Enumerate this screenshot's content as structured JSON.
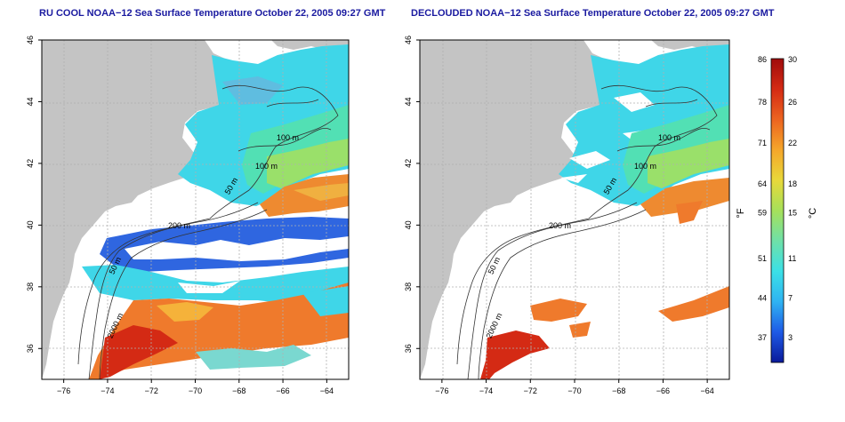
{
  "panels": [
    {
      "title": "RU COOL NOAA−12 Sea Surface Temperature October 22, 2005 09:27 GMT",
      "cloud_masked": false
    },
    {
      "title": "DECLOUDED NOAA−12 Sea Surface Temperature October 22, 2005 09:27 GMT",
      "cloud_masked": true
    }
  ],
  "axes": {
    "lon_range": [
      -77,
      -63
    ],
    "lat_range": [
      35,
      46
    ],
    "x_ticks": [
      -76,
      -74,
      -72,
      -70,
      -68,
      -66,
      -64
    ],
    "y_ticks": [
      36,
      38,
      40,
      42,
      44,
      46
    ],
    "x_labels": [
      "−76",
      "−74",
      "−72",
      "−70",
      "−68",
      "−66",
      "−64"
    ],
    "y_labels": [
      "36",
      "38",
      "40",
      "42",
      "44",
      "46"
    ],
    "grid": true
  },
  "isobaths": {
    "labels": [
      "100 m",
      "100 m",
      "50 m",
      "200 m",
      "50 m",
      "2000 m"
    ]
  },
  "colorbar": {
    "fahrenheit_label": "°F",
    "celsius_label": "°C",
    "fahrenheit_ticks": [
      "86",
      "78",
      "71",
      "64",
      "59",
      "51",
      "44",
      "37"
    ],
    "celsius_ticks": [
      "30",
      "26",
      "22",
      "18",
      "15",
      "11",
      "7",
      "3"
    ],
    "range_c": [
      0,
      30
    ],
    "colors": [
      "#0a1a9a",
      "#1e5ae6",
      "#2fb3f2",
      "#3be0e6",
      "#6fe0a8",
      "#a6e05a",
      "#e8d83a",
      "#f5a62a",
      "#ec6420",
      "#d42a14",
      "#a00c0c"
    ]
  },
  "colors": {
    "land": "#c4c4c4",
    "ocean_nodata": "#ffffff",
    "title": "#1a1aa0",
    "isobath": "#333333",
    "grid": "#b0b0b0"
  }
}
